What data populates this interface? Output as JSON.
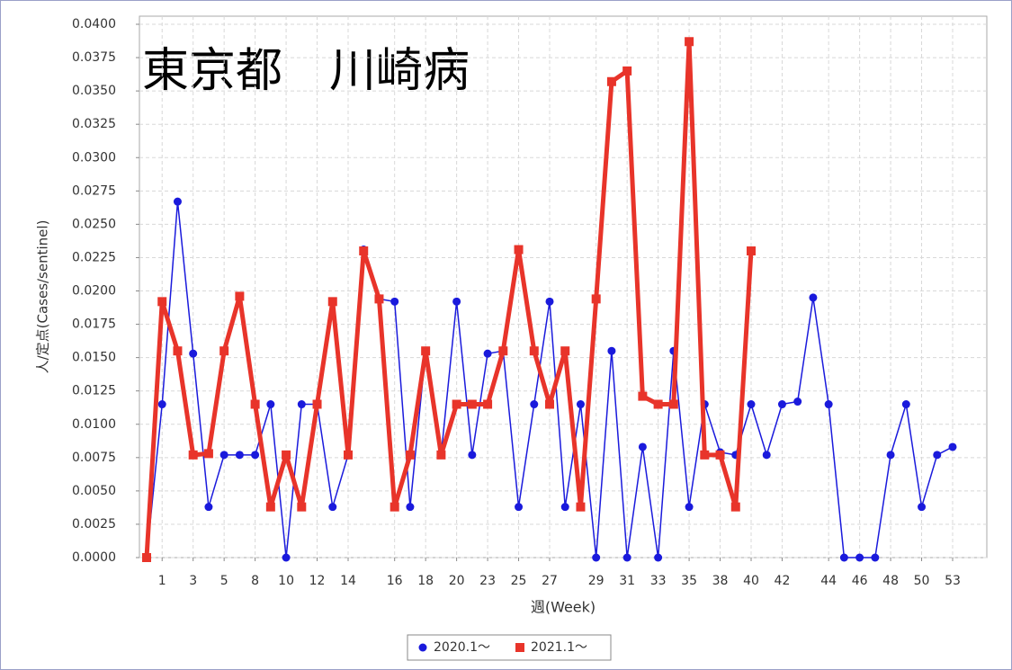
{
  "chart_data": {
    "type": "line",
    "title": "東京都　川崎病",
    "x_label": "週(Week)",
    "y_label": "人/定点(Cases/sentinel)",
    "categories": [
      null,
      "1",
      null,
      "3",
      null,
      "5",
      null,
      "8",
      null,
      "10",
      null,
      "12",
      null,
      "14",
      null,
      null,
      "16",
      null,
      "18",
      null,
      "20",
      null,
      "23",
      null,
      "25",
      null,
      "27",
      null,
      null,
      "29",
      null,
      "31",
      null,
      "33",
      null,
      "35",
      null,
      "38",
      null,
      "40",
      null,
      "42",
      null,
      null,
      "44",
      null,
      "46",
      null,
      "48",
      null,
      "50",
      null,
      "53"
    ],
    "series": [
      {
        "name": "2020.1～",
        "color": "#1a1adc",
        "marker": "circle",
        "values": [
          0,
          0.0115,
          0.0267,
          0.0153,
          0.0038,
          0.0077,
          0.0077,
          0.0077,
          0.0115,
          0,
          0.0115,
          0.0115,
          0.0038,
          0.0077,
          0.0231,
          0.0194,
          0.0192,
          0.0038,
          0.0155,
          0.0077,
          0.0192,
          0.0077,
          0.0153,
          0.0155,
          0.0038,
          0.0115,
          0.0192,
          0.0038,
          0.0115,
          0,
          0.0155,
          0,
          0.0083,
          0,
          0.0155,
          0.0038,
          0.0115,
          0.0079,
          0.0077,
          0.0115,
          0.0077,
          0.0115,
          0.0117,
          0.0195,
          0.0115,
          0,
          0,
          0,
          0.0077,
          0.0115,
          0.0038,
          0.0077,
          0.0083
        ]
      },
      {
        "name": "2021.1～",
        "color": "#e8342a",
        "marker": "square",
        "values": [
          0,
          0.0192,
          0.0155,
          0.0077,
          0.0078,
          0.0155,
          0.0196,
          0.0115,
          0.0038,
          0.0077,
          0.0038,
          0.0115,
          0.0192,
          0.0077,
          0.023,
          0.0194,
          0.0038,
          0.0077,
          0.0155,
          0.0077,
          0.0115,
          0.0115,
          0.0115,
          0.0155,
          0.0231,
          0.0155,
          0.0115,
          0.0155,
          0.0038,
          0.0194,
          0.0357,
          0.0365,
          0.0121,
          0.0115,
          0.0115,
          0.0387,
          0.0077,
          0.0077,
          0.0038,
          0.023,
          null,
          null,
          null,
          null,
          null,
          null,
          null,
          null,
          null,
          null,
          null,
          null,
          null
        ]
      }
    ],
    "ylim": [
      0,
      0.04
    ],
    "yticks": [
      {
        "value": 0,
        "label": "0.0000"
      },
      {
        "value": 0.0025,
        "label": "0.0025"
      },
      {
        "value": 0.005,
        "label": "0.0050"
      },
      {
        "value": 0.0075,
        "label": "0.0075"
      },
      {
        "value": 0.01,
        "label": "0.0100"
      },
      {
        "value": 0.0125,
        "label": "0.0125"
      },
      {
        "value": 0.015,
        "label": "0.0150"
      },
      {
        "value": 0.0175,
        "label": "0.0175"
      },
      {
        "value": 0.02,
        "label": "0.0200"
      },
      {
        "value": 0.0225,
        "label": "0.0225"
      },
      {
        "value": 0.025,
        "label": "0.0250"
      },
      {
        "value": 0.0275,
        "label": "0.0275"
      },
      {
        "value": 0.03,
        "label": "0.0300"
      },
      {
        "value": 0.0325,
        "label": "0.0325"
      },
      {
        "value": 0.035,
        "label": "0.0350"
      },
      {
        "value": 0.0375,
        "label": "0.0375"
      },
      {
        "value": 0.04,
        "label": "0.0400"
      }
    ],
    "grid": true
  }
}
